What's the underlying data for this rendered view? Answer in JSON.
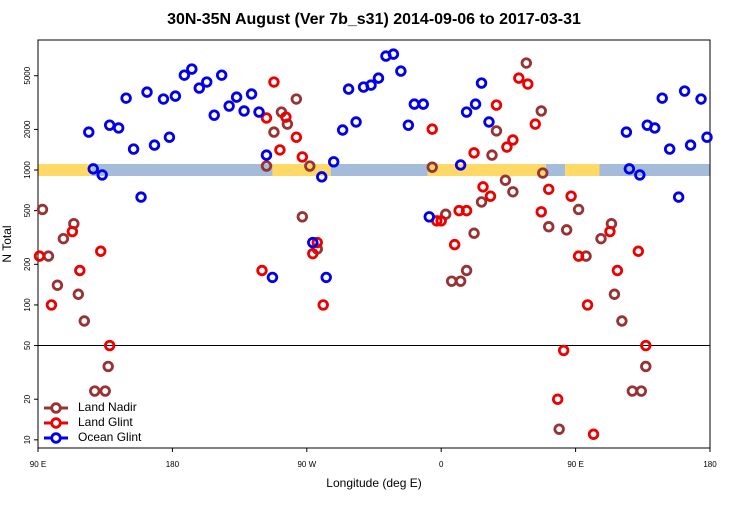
{
  "chart_data": {
    "type": "scatter",
    "title": "30N-35N August (Ver 7b_s31)   2014-09-06 to 2017-03-31",
    "x_label": "Longitude (deg E)",
    "y_label": "N Total",
    "xlim": [
      90,
      540
    ],
    "xticks": [
      {
        "value": 90,
        "label": "90 E"
      },
      180,
      {
        "value": 270,
        "label": "90 W"
      },
      {
        "value": 360,
        "label": "0"
      },
      {
        "value": 450,
        "label": "90 E"
      },
      {
        "value": 540,
        "label": "180"
      }
    ],
    "ylim": [
      8.7,
      9200
    ],
    "yticks": [
      10,
      20,
      50,
      100,
      200,
      500,
      1000,
      2000,
      5000
    ],
    "log_y": true,
    "reference_line": 50,
    "legend": "lower left",
    "band": {
      "value": 1000,
      "segments": [
        {
          "from": 90,
          "to": 126,
          "color": "#ffd966"
        },
        {
          "from": 126,
          "to": 247,
          "color": "#a4bcd9"
        },
        {
          "from": 247,
          "to": 286,
          "color": "#ffd966"
        },
        {
          "from": 286,
          "to": 351,
          "color": "#a4bcd9"
        },
        {
          "from": 351,
          "to": 430,
          "color": "#ffd966"
        },
        {
          "from": 430,
          "to": 443,
          "color": "#a4bcd9"
        },
        {
          "from": 443,
          "to": 466,
          "color": "#ffd966"
        },
        {
          "from": 466,
          "to": 540,
          "color": "#a4bcd9"
        }
      ]
    },
    "series": [
      {
        "name": "Land Nadir",
        "color": "#993333",
        "x": [
          93,
          97,
          103,
          107,
          114,
          117,
          121,
          128,
          135,
          137,
          243,
          248,
          253,
          257,
          263,
          267,
          272,
          277,
          354,
          363,
          367,
          373,
          377,
          382,
          387,
          394,
          397,
          403,
          408,
          417,
          427,
          428,
          432,
          439,
          444,
          452,
          457,
          467,
          474,
          476,
          481,
          488,
          494,
          497
        ],
        "values": [
          510,
          230,
          140,
          310,
          400,
          120,
          76,
          23,
          23,
          35,
          1070,
          1910,
          2690,
          2190,
          3360,
          450,
          1070,
          260,
          1050,
          470,
          150,
          150,
          180,
          340,
          580,
          1290,
          1950,
          840,
          690,
          6210,
          2740,
          950,
          380,
          12,
          360,
          510,
          230,
          310,
          400,
          120,
          76,
          23,
          23,
          35
        ]
      },
      {
        "name": "Land Glint",
        "color": "#ee0000",
        "x": [
          91,
          99,
          113,
          118,
          132,
          138,
          240,
          243,
          248,
          252,
          256,
          263,
          267,
          274,
          277,
          281,
          354,
          357,
          360,
          369,
          372,
          377,
          382,
          388,
          393,
          397,
          404,
          408,
          412,
          418,
          423,
          427,
          432,
          438,
          442,
          447,
          452,
          458,
          462,
          473,
          478,
          492,
          497
        ],
        "values": [
          230,
          100,
          350,
          180,
          250,
          50,
          180,
          2430,
          4490,
          1410,
          2470,
          1750,
          1250,
          240,
          290,
          100,
          2010,
          420,
          420,
          280,
          500,
          500,
          1340,
          750,
          640,
          3030,
          1480,
          1670,
          4800,
          4340,
          2190,
          490,
          720,
          20,
          46,
          640,
          230,
          100,
          11,
          350,
          180,
          250,
          50
        ]
      },
      {
        "name": "Ocean Glint",
        "color": "#0000ee",
        "x": [
          124,
          127,
          133,
          138,
          144,
          149,
          154,
          159,
          163,
          168,
          174,
          178,
          182,
          188,
          193,
          198,
          203,
          208,
          213,
          218,
          223,
          228,
          233,
          238,
          243,
          247,
          274,
          280,
          283,
          288,
          294,
          298,
          303,
          308,
          313,
          318,
          323,
          328,
          333,
          338,
          342,
          348,
          352,
          373,
          377,
          383,
          387,
          392,
          484,
          486,
          493,
          498,
          503,
          508,
          513,
          519,
          523,
          527,
          534,
          538
        ],
        "values": [
          1910,
          1020,
          920,
          2150,
          2050,
          3410,
          1430,
          630,
          3780,
          1530,
          3360,
          1750,
          3530,
          5050,
          5600,
          4050,
          4490,
          2550,
          5050,
          2980,
          3470,
          2740,
          3660,
          2690,
          1290,
          160,
          290,
          890,
          160,
          1150,
          1980,
          3980,
          2270,
          4120,
          4260,
          4800,
          6990,
          7230,
          5410,
          2150,
          3080,
          3080,
          450,
          1090,
          2690,
          3080,
          4410,
          2270,
          1910,
          1020,
          920,
          2150,
          2050,
          3410,
          1430,
          630,
          3850,
          1530,
          3360,
          1750
        ]
      }
    ]
  }
}
